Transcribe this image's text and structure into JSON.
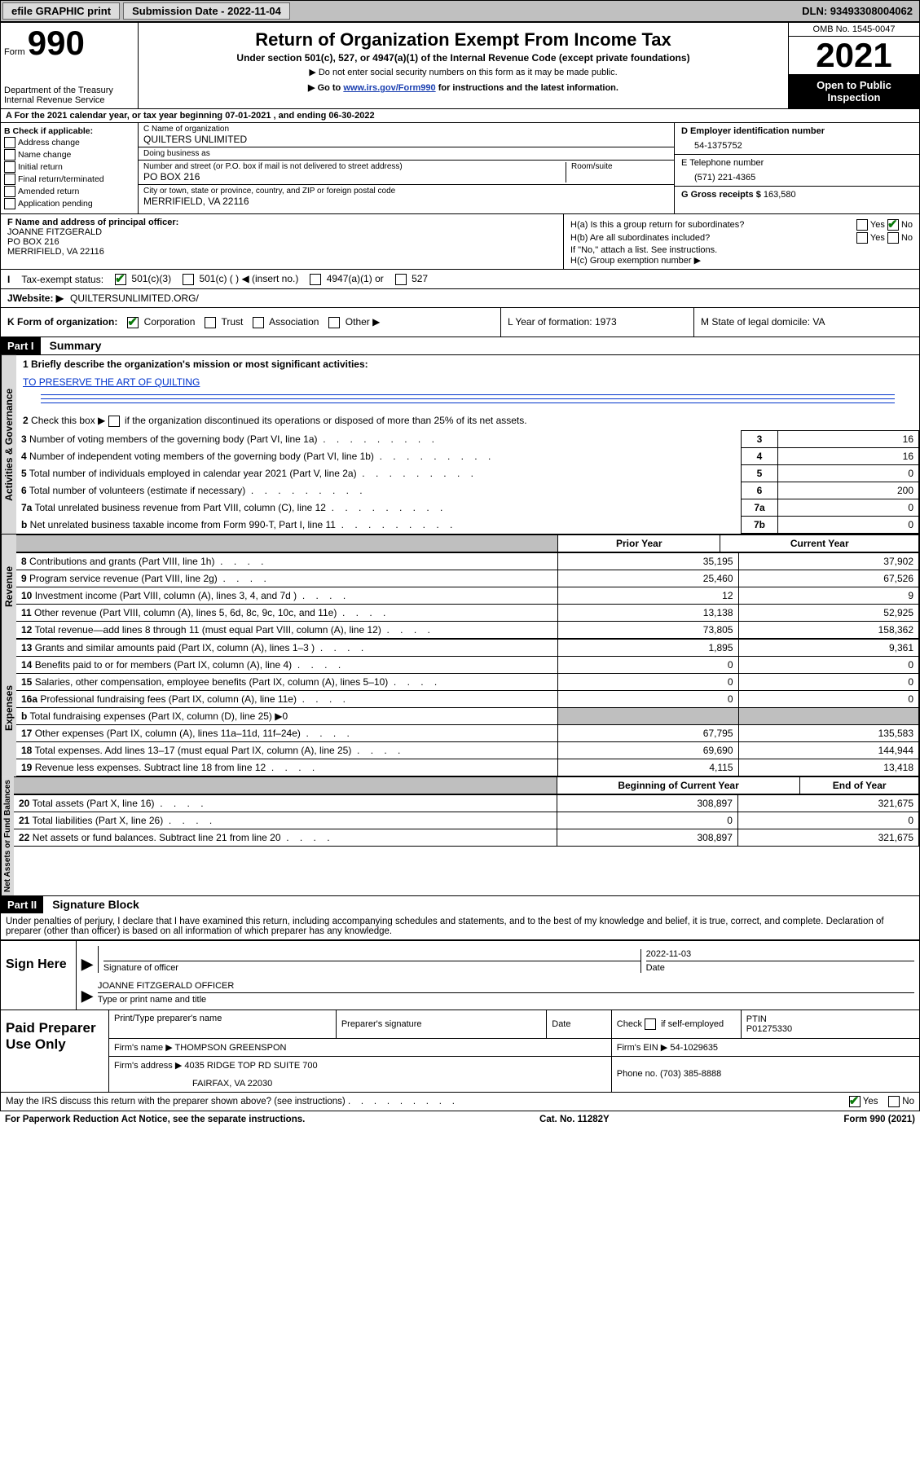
{
  "topbar": {
    "efile": "efile GRAPHIC print",
    "sub_label": "Submission Date - 2022-11-04",
    "dln_label": "DLN: 93493308004062"
  },
  "header": {
    "form_word": "Form",
    "form_num": "990",
    "dept": "Department of the Treasury\nInternal Revenue Service",
    "title": "Return of Organization Exempt From Income Tax",
    "under": "Under section 501(c), 527, or 4947(a)(1) of the Internal Revenue Code (except private foundations)",
    "noti": "▶ Do not enter social security numbers on this form as it may be made public.",
    "goto_pre": "▶ Go to ",
    "goto_link": "www.irs.gov/Form990",
    "goto_post": " for instructions and the latest information.",
    "omb": "OMB No. 1545-0047",
    "year": "2021",
    "open": "Open to Public Inspection"
  },
  "lineA": "A For the 2021 calendar year, or tax year beginning 07-01-2021    , and ending 06-30-2022",
  "B": {
    "title": "B Check if applicable:",
    "items": [
      "Address change",
      "Name change",
      "Initial return",
      "Final return/terminated",
      "Amended return",
      "Application pending"
    ]
  },
  "C": {
    "name_lbl": "C Name of organization",
    "name": "QUILTERS UNLIMITED",
    "dba_lbl": "Doing business as",
    "dba": "",
    "street_lbl": "Number and street (or P.O. box if mail is not delivered to street address)",
    "street": "PO BOX 216",
    "room_lbl": "Room/suite",
    "city_lbl": "City or town, state or province, country, and ZIP or foreign postal code",
    "city": "MERRIFIELD, VA  22116"
  },
  "D": {
    "lbl": "D Employer identification number",
    "val": "54-1375752"
  },
  "E": {
    "lbl": "E Telephone number",
    "val": "(571) 221-4365"
  },
  "G": {
    "lbl": "G Gross receipts $",
    "val": "163,580"
  },
  "F": {
    "lbl": "F Name and address of principal officer:",
    "name": "JOANNE FITZGERALD",
    "addr1": "PO BOX 216",
    "addr2": "MERRIFIELD, VA  22116"
  },
  "H": {
    "a": "H(a)  Is this a group return for subordinates?",
    "a_yes": "Yes",
    "a_no": "No",
    "b": "H(b)  Are all subordinates included?",
    "b_yes": "Yes",
    "b_no": "No",
    "b_note": "If \"No,\" attach a list. See instructions.",
    "c": "H(c)  Group exemption number ▶"
  },
  "I": {
    "lbl": "Tax-exempt status:",
    "o1": "501(c)(3)",
    "o2": "501(c) (   ) ◀ (insert no.)",
    "o3": "4947(a)(1) or",
    "o4": "527"
  },
  "J": {
    "lbl": "Website: ▶",
    "val": "QUILTERSUNLIMITED.ORG/"
  },
  "K": {
    "lbl": "K Form of organization:",
    "o1": "Corporation",
    "o2": "Trust",
    "o3": "Association",
    "o4": "Other ▶",
    "L": "L Year of formation: 1973",
    "M": "M State of legal domicile: VA"
  },
  "part1": {
    "hdr": "Part I",
    "title": "Summary",
    "line1": "1  Briefly describe the organization's mission or most significant activities:",
    "mission": "TO PRESERVE THE ART OF QUILTING",
    "line2": "2  Check this box ▶      if the organization discontinued its operations or disposed of more than 25% of its net assets.",
    "vtab_ag": "Activities & Governance",
    "vtab_rev": "Revenue",
    "vtab_exp": "Expenses",
    "vtab_na": "Net Assets or Fund Balances",
    "rows_ag": [
      {
        "n": "3",
        "t": "Number of voting members of the governing body (Part VI, line 1a)",
        "v": "16"
      },
      {
        "n": "4",
        "t": "Number of independent voting members of the governing body (Part VI, line 1b)",
        "v": "16"
      },
      {
        "n": "5",
        "t": "Total number of individuals employed in calendar year 2021 (Part V, line 2a)",
        "v": "0"
      },
      {
        "n": "6",
        "t": "Total number of volunteers (estimate if necessary)",
        "v": "200"
      },
      {
        "n": "7a",
        "t": "Total unrelated business revenue from Part VIII, column (C), line 12",
        "v": "0"
      },
      {
        "n": "b",
        "t": "Net unrelated business taxable income from Form 990-T, Part I, line 11",
        "idx": "7b",
        "v": "0"
      }
    ],
    "col_hdr_prior": "Prior Year",
    "col_hdr_curr": "Current Year",
    "rows_rev": [
      {
        "n": "8",
        "t": "Contributions and grants (Part VIII, line 1h)",
        "p": "35,195",
        "c": "37,902"
      },
      {
        "n": "9",
        "t": "Program service revenue (Part VIII, line 2g)",
        "p": "25,460",
        "c": "67,526"
      },
      {
        "n": "10",
        "t": "Investment income (Part VIII, column (A), lines 3, 4, and 7d )",
        "p": "12",
        "c": "9"
      },
      {
        "n": "11",
        "t": "Other revenue (Part VIII, column (A), lines 5, 6d, 8c, 9c, 10c, and 11e)",
        "p": "13,138",
        "c": "52,925"
      },
      {
        "n": "12",
        "t": "Total revenue—add lines 8 through 11 (must equal Part VIII, column (A), line 12)",
        "p": "73,805",
        "c": "158,362"
      }
    ],
    "rows_exp": [
      {
        "n": "13",
        "t": "Grants and similar amounts paid (Part IX, column (A), lines 1–3 )",
        "p": "1,895",
        "c": "9,361"
      },
      {
        "n": "14",
        "t": "Benefits paid to or for members (Part IX, column (A), line 4)",
        "p": "0",
        "c": "0"
      },
      {
        "n": "15",
        "t": "Salaries, other compensation, employee benefits (Part IX, column (A), lines 5–10)",
        "p": "0",
        "c": "0"
      },
      {
        "n": "16a",
        "t": "Professional fundraising fees (Part IX, column (A), line 11e)",
        "p": "0",
        "c": "0"
      },
      {
        "n": "b",
        "t": "Total fundraising expenses (Part IX, column (D), line 25) ▶0",
        "shade": true
      },
      {
        "n": "17",
        "t": "Other expenses (Part IX, column (A), lines 11a–11d, 11f–24e)",
        "p": "67,795",
        "c": "135,583"
      },
      {
        "n": "18",
        "t": "Total expenses. Add lines 13–17 (must equal Part IX, column (A), line 25)",
        "p": "69,690",
        "c": "144,944"
      },
      {
        "n": "19",
        "t": "Revenue less expenses. Subtract line 18 from line 12",
        "p": "4,115",
        "c": "13,418"
      }
    ],
    "col_hdr_beg": "Beginning of Current Year",
    "col_hdr_end": "End of Year",
    "rows_na": [
      {
        "n": "20",
        "t": "Total assets (Part X, line 16)",
        "p": "308,897",
        "c": "321,675"
      },
      {
        "n": "21",
        "t": "Total liabilities (Part X, line 26)",
        "p": "0",
        "c": "0"
      },
      {
        "n": "22",
        "t": "Net assets or fund balances. Subtract line 21 from line 20",
        "p": "308,897",
        "c": "321,675"
      }
    ]
  },
  "part2": {
    "hdr": "Part II",
    "title": "Signature Block",
    "penalty": "Under penalties of perjury, I declare that I have examined this return, including accompanying schedules and statements, and to the best of my knowledge and belief, it is true, correct, and complete. Declaration of preparer (other than officer) is based on all information of which preparer has any knowledge."
  },
  "sign": {
    "left": "Sign Here",
    "sig_lbl": "Signature of officer",
    "date_lbl": "Date",
    "date_val": "2022-11-03",
    "name": "JOANNE FITZGERALD  OFFICER",
    "name_lbl": "Type or print name and title"
  },
  "prep": {
    "left": "Paid Preparer Use Only",
    "h1": "Print/Type preparer's name",
    "h2": "Preparer's signature",
    "h3": "Date",
    "h4_chk": "Check       if self-employed",
    "h5_lbl": "PTIN",
    "h5_val": "P01275330",
    "firm_lbl": "Firm's name    ▶",
    "firm_name": "THOMPSON GREENSPON",
    "ein_lbl": "Firm's EIN ▶",
    "ein_val": "54-1029635",
    "addr_lbl": "Firm's address ▶",
    "addr1": "4035 RIDGE TOP RD SUITE 700",
    "addr2": "FAIRFAX, VA  22030",
    "phone_lbl": "Phone no.",
    "phone_val": "(703) 385-8888"
  },
  "footer": {
    "q": "May the IRS discuss this return with the preparer shown above? (see instructions)",
    "yes": "Yes",
    "no": "No",
    "pra": "For Paperwork Reduction Act Notice, see the separate instructions.",
    "cat": "Cat. No. 11282Y",
    "form": "Form 990 (2021)"
  }
}
